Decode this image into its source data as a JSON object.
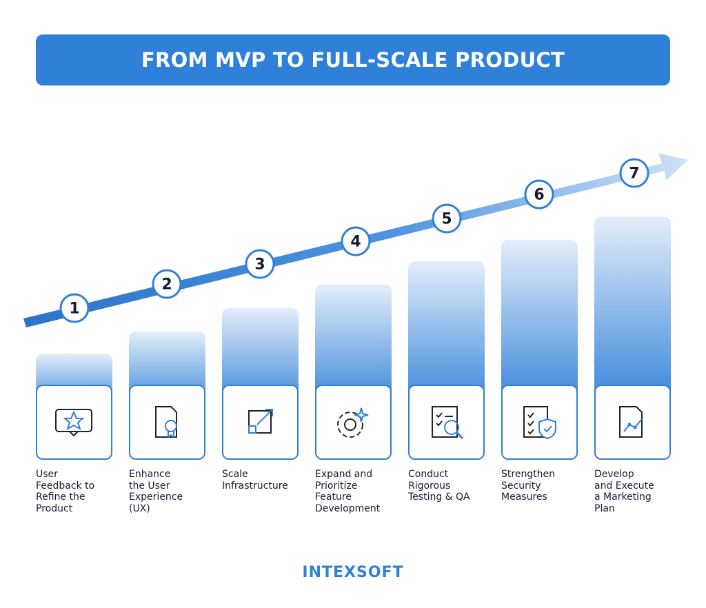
{
  "header": {
    "title": "FROM MVP TO FULL-SCALE PRODUCT"
  },
  "steps": [
    {
      "number": "1",
      "label_lines": [
        "User",
        "Feedback to",
        "Refine the",
        "Product"
      ]
    },
    {
      "number": "2",
      "label_lines": [
        "Enhance",
        "the User",
        "Experience",
        "(UX)"
      ]
    },
    {
      "number": "3",
      "label_lines": [
        "Scale",
        "Infrastructure"
      ]
    },
    {
      "number": "4",
      "label_lines": [
        "Expand and",
        "Prioritize",
        "Feature",
        "Development"
      ]
    },
    {
      "number": "5",
      "label_lines": [
        "Conduct",
        "Rigorous",
        "Testing & QA"
      ]
    },
    {
      "number": "6",
      "label_lines": [
        "Strengthen",
        "Security",
        "Measures"
      ]
    },
    {
      "number": "7",
      "label_lines": [
        "Develop",
        "and Execute",
        "a Marketing",
        "Plan"
      ]
    }
  ],
  "footer": {
    "logo": "INTEXSOFT"
  }
}
